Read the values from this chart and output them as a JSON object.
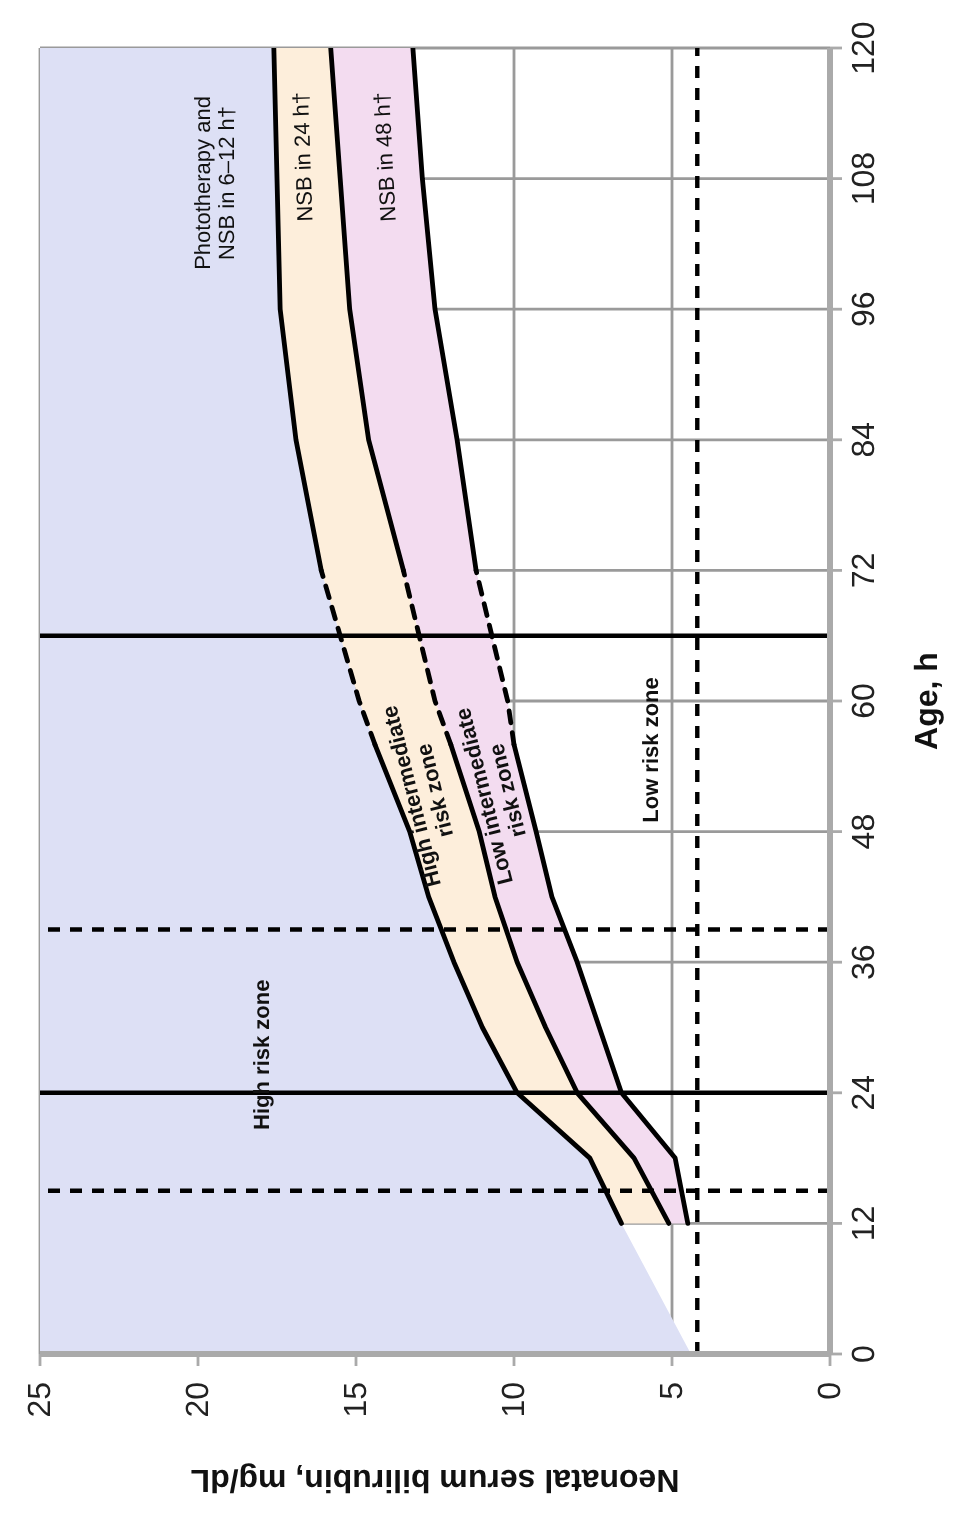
{
  "chart_data": {
    "type": "line",
    "orientation": "horizontal",
    "xlabel": "Neonatal serum bilirubin, mg/dL",
    "ylabel": "Age, h",
    "x": [
      0,
      12,
      18,
      24,
      30,
      36,
      42,
      48,
      56,
      60,
      72,
      84,
      96,
      108,
      120
    ],
    "xlim": [
      25,
      0
    ],
    "xticks": [
      0,
      5,
      10,
      15,
      20,
      25
    ],
    "ylim": [
      0,
      120
    ],
    "yticks": [
      0,
      12,
      24,
      36,
      48,
      60,
      72,
      84,
      96,
      108,
      120
    ],
    "grid": true,
    "legend": false,
    "marker": "none",
    "series": [
      {
        "type": "area",
        "color": "#f3dcf0",
        "values": [
          null,
          null,
          null,
          null,
          null,
          null,
          null,
          null,
          null,
          null,
          null,
          null,
          null,
          null,
          null
        ],
        "lower": [
          null,
          4.5,
          4.9,
          6.6,
          7.3,
          8.0,
          8.8,
          9.3,
          10.0,
          10.2,
          11.2,
          11.8,
          12.5,
          12.9,
          13.2
        ],
        "upper": [
          null,
          5.1,
          6.2,
          8.0,
          9.0,
          9.9,
          10.6,
          11.1,
          12.0,
          12.5,
          13.5,
          14.6,
          15.2,
          15.5,
          15.8
        ]
      },
      {
        "type": "area",
        "color": "#fdeedb",
        "values": [
          null,
          null,
          null,
          null,
          null,
          null,
          null,
          null,
          null,
          null,
          null,
          null,
          null,
          null,
          null
        ],
        "lower": [
          null,
          5.1,
          6.2,
          8.0,
          9.0,
          9.9,
          10.6,
          11.1,
          12.0,
          12.5,
          13.5,
          14.6,
          15.2,
          15.5,
          15.8
        ],
        "upper": [
          null,
          6.6,
          7.6,
          9.9,
          11.0,
          11.9,
          12.7,
          13.3,
          14.4,
          14.9,
          16.1,
          16.9,
          17.4,
          17.5,
          17.6
        ]
      },
      {
        "type": "area",
        "color": "#dde0f5",
        "values": [
          null,
          null,
          null,
          null,
          null,
          null,
          null,
          null,
          null,
          null,
          null,
          null,
          null,
          null,
          null
        ],
        "lower": [
          4.4,
          6.6,
          7.6,
          9.9,
          11.0,
          11.9,
          12.7,
          13.3,
          14.4,
          14.9,
          16.1,
          16.9,
          17.4,
          17.5,
          17.6
        ],
        "upper": [
          25,
          25,
          25,
          25,
          25,
          25,
          25,
          25,
          25,
          25,
          25,
          25,
          25,
          25,
          25
        ]
      },
      {
        "color": "#000000",
        "line_style": "solid",
        "values": [
          null,
          6.6,
          7.6,
          9.9,
          11.0,
          11.9,
          12.7,
          13.3,
          14.4,
          null,
          null,
          null,
          null,
          null,
          null
        ]
      },
      {
        "color": "#000000",
        "line_style": "dashed",
        "values": [
          null,
          null,
          null,
          null,
          null,
          null,
          null,
          null,
          14.4,
          14.9,
          16.1,
          null,
          null,
          null,
          null
        ]
      },
      {
        "color": "#000000",
        "line_style": "solid",
        "values": [
          null,
          null,
          null,
          null,
          null,
          null,
          null,
          null,
          null,
          null,
          16.1,
          16.9,
          17.4,
          17.5,
          17.6
        ]
      },
      {
        "color": "#000000",
        "line_style": "solid",
        "values": [
          null,
          5.1,
          6.2,
          8.0,
          9.0,
          9.9,
          10.6,
          11.1,
          12.0,
          null,
          null,
          null,
          null,
          null,
          null
        ]
      },
      {
        "color": "#000000",
        "line_style": "dashed",
        "values": [
          null,
          null,
          null,
          null,
          null,
          null,
          null,
          null,
          12.0,
          12.5,
          13.5,
          null,
          null,
          null,
          null
        ]
      },
      {
        "color": "#000000",
        "line_style": "solid",
        "values": [
          null,
          null,
          null,
          null,
          null,
          null,
          null,
          null,
          null,
          null,
          13.5,
          14.6,
          15.2,
          15.5,
          15.8
        ]
      },
      {
        "color": "#000000",
        "line_style": "solid",
        "values": [
          null,
          4.5,
          4.9,
          6.6,
          7.3,
          8.0,
          8.8,
          9.3,
          10.0,
          null,
          null,
          null,
          null,
          null,
          null
        ]
      },
      {
        "color": "#000000",
        "line_style": "dashed",
        "values": [
          null,
          null,
          null,
          null,
          null,
          null,
          null,
          null,
          10.0,
          10.2,
          11.2,
          null,
          null,
          null,
          null
        ]
      },
      {
        "color": "#000000",
        "line_style": "solid",
        "values": [
          null,
          null,
          null,
          null,
          null,
          null,
          null,
          null,
          null,
          null,
          11.2,
          11.8,
          12.5,
          12.9,
          13.2
        ]
      }
    ],
    "ref_lines": [
      {
        "axis": "y",
        "value": 15,
        "color": "#000000",
        "line_style": "dashed"
      },
      {
        "axis": "y",
        "value": 24,
        "color": "#000000",
        "line_style": "solid"
      },
      {
        "axis": "y",
        "value": 39,
        "color": "#000000",
        "line_style": "dashed"
      },
      {
        "axis": "y",
        "value": 66,
        "color": "#000000",
        "line_style": "solid"
      },
      {
        "axis": "x",
        "value": 4.2,
        "color": "#000000",
        "line_style": "dashed"
      }
    ],
    "annotations": [
      "Phototherapy and NSB in 6–12 h†",
      "NSB in 24 h†",
      "NSB in 48 h†",
      "High risk zone",
      "High intermediate risk zone",
      "Low intermediate risk zone",
      "Low risk zone"
    ]
  }
}
